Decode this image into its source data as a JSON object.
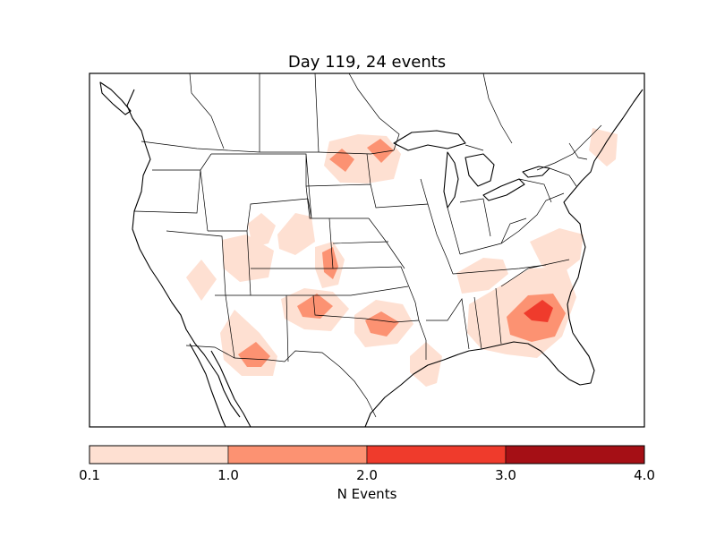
{
  "title": "Day 119, 24 events",
  "colorbar": {
    "label": "N Events",
    "ticks": [
      "0.1",
      "1.0",
      "2.0",
      "3.0",
      "4.0"
    ],
    "levels": [
      0.1,
      1.0,
      2.0,
      3.0,
      4.0
    ],
    "colors": [
      "#fee0d2",
      "#fc9272",
      "#ef3b2c",
      "#a50f15"
    ]
  },
  "map": {
    "region": "contiguous United States",
    "coastline_color": "#000000",
    "hotspots": [
      {
        "region": "Georgia / South Carolina",
        "level": 3
      },
      {
        "region": "North Dakota",
        "level": 2
      },
      {
        "region": "New Mexico",
        "level": 2
      },
      {
        "region": "Oklahoma",
        "level": 2
      },
      {
        "region": "Arizona",
        "level": 2
      },
      {
        "region": "Colorado / Kansas",
        "level": 2
      },
      {
        "region": "Wyoming",
        "level": 1
      },
      {
        "region": "Tennessee",
        "level": 1
      },
      {
        "region": "North Carolina",
        "level": 1
      },
      {
        "region": "New England",
        "level": 1
      },
      {
        "region": "Texas coast",
        "level": 1
      },
      {
        "region": "Nevada",
        "level": 1
      }
    ]
  }
}
